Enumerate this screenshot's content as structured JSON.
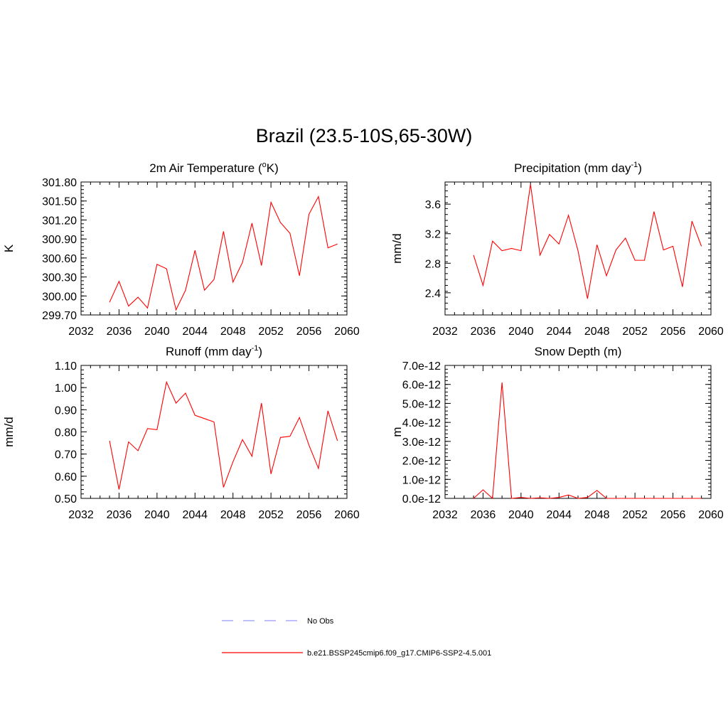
{
  "main_title": "Brazil (23.5-10S,65-30W)",
  "colors": {
    "model": "#ff0000",
    "obs": "#9999ff",
    "axis": "#000000"
  },
  "legend": [
    {
      "label": "No Obs",
      "style": "dashed",
      "color": "#9999ff"
    },
    {
      "label": "b.e21.BSSP245cmip6.f09_g17.CMIP6-SSP2-4.5.001",
      "style": "solid",
      "color": "#ff0000"
    }
  ],
  "chart_data": [
    {
      "type": "line",
      "title": "2m Air Temperature (",
      "title_sup": "o",
      "title_suffix": "K)",
      "ylabel": "K",
      "xlim": [
        2032,
        2060
      ],
      "xticks": [
        "2032",
        "2036",
        "2040",
        "2044",
        "2048",
        "2052",
        "2056",
        "2060"
      ],
      "ylim": [
        299.7,
        301.8
      ],
      "yticks": [
        "299.70",
        "300.00",
        "300.30",
        "300.60",
        "300.90",
        "301.20",
        "301.50",
        "301.80"
      ],
      "x": [
        2035,
        2036,
        2037,
        2038,
        2039,
        2040,
        2041,
        2042,
        2043,
        2044,
        2045,
        2046,
        2047,
        2048,
        2049,
        2050,
        2051,
        2052,
        2053,
        2054,
        2055,
        2056,
        2057,
        2058,
        2059
      ],
      "values": [
        299.9,
        300.23,
        299.84,
        299.98,
        299.81,
        300.5,
        300.43,
        299.78,
        300.09,
        300.72,
        300.09,
        300.26,
        301.02,
        300.22,
        300.53,
        301.15,
        300.48,
        301.48,
        301.16,
        300.99,
        300.32,
        301.29,
        301.57,
        300.76,
        300.82
      ]
    },
    {
      "type": "line",
      "title": "Precipitation (mm day",
      "title_sup": "-1",
      "title_suffix": ")",
      "ylabel": "mm/d",
      "xlim": [
        2032,
        2060
      ],
      "xticks": [
        "2032",
        "2036",
        "2040",
        "2044",
        "2048",
        "2052",
        "2056",
        "2060"
      ],
      "ylim": [
        2.1,
        3.9
      ],
      "yticks": [
        "2.4",
        "2.8",
        "3.2",
        "3.6"
      ],
      "x": [
        2035,
        2036,
        2037,
        2038,
        2039,
        2040,
        2041,
        2042,
        2043,
        2044,
        2045,
        2046,
        2047,
        2048,
        2049,
        2050,
        2051,
        2052,
        2053,
        2054,
        2055,
        2056,
        2057,
        2058,
        2059
      ],
      "values": [
        2.91,
        2.5,
        3.1,
        2.97,
        3.0,
        2.97,
        3.87,
        2.91,
        3.19,
        3.06,
        3.45,
        2.97,
        2.32,
        3.05,
        2.63,
        2.98,
        3.14,
        2.84,
        2.84,
        3.5,
        2.98,
        3.03,
        2.48,
        3.37,
        3.03
      ]
    },
    {
      "type": "line",
      "title": "Runoff (mm day",
      "title_sup": "-1",
      "title_suffix": ")",
      "ylabel": "mm/d",
      "xlim": [
        2032,
        2060
      ],
      "xticks": [
        "2032",
        "2036",
        "2040",
        "2044",
        "2048",
        "2052",
        "2056",
        "2060"
      ],
      "ylim": [
        0.5,
        1.1
      ],
      "yticks": [
        "0.50",
        "0.60",
        "0.70",
        "0.80",
        "0.90",
        "1.00",
        "1.10"
      ],
      "x": [
        2035,
        2036,
        2037,
        2038,
        2039,
        2040,
        2041,
        2042,
        2043,
        2044,
        2045,
        2046,
        2047,
        2048,
        2049,
        2050,
        2051,
        2052,
        2053,
        2054,
        2055,
        2056,
        2057,
        2058,
        2059
      ],
      "values": [
        0.76,
        0.54,
        0.755,
        0.715,
        0.815,
        0.81,
        1.025,
        0.93,
        0.975,
        0.875,
        0.86,
        0.845,
        0.55,
        0.665,
        0.765,
        0.69,
        0.93,
        0.61,
        0.775,
        0.78,
        0.865,
        0.74,
        0.635,
        0.895,
        0.76
      ]
    },
    {
      "type": "line",
      "title": "Snow Depth (m)",
      "title_sup": "",
      "title_suffix": "",
      "ylabel": "m",
      "xlim": [
        2032,
        2060
      ],
      "xticks": [
        "2032",
        "2036",
        "2040",
        "2044",
        "2048",
        "2052",
        "2056",
        "2060"
      ],
      "ylim": [
        0,
        7e-12
      ],
      "yticks": [
        "0.0e-12",
        "1.0e-12",
        "2.0e-12",
        "3.0e-12",
        "4.0e-12",
        "5.0e-12",
        "6.0e-12",
        "7.0e-12"
      ],
      "x": [
        2035,
        2036,
        2037,
        2038,
        2039,
        2040,
        2041,
        2042,
        2043,
        2044,
        2045,
        2046,
        2047,
        2048,
        2049,
        2050,
        2051,
        2052,
        2053,
        2054,
        2055,
        2056,
        2057,
        2058,
        2059
      ],
      "values": [
        0,
        4.5e-13,
        0,
        6.1e-12,
        0,
        5e-14,
        0,
        3e-14,
        0,
        5e-14,
        1.8e-13,
        0,
        5e-14,
        4.2e-13,
        0,
        0,
        0,
        0,
        0,
        0,
        0,
        0,
        0,
        0,
        0
      ]
    }
  ]
}
